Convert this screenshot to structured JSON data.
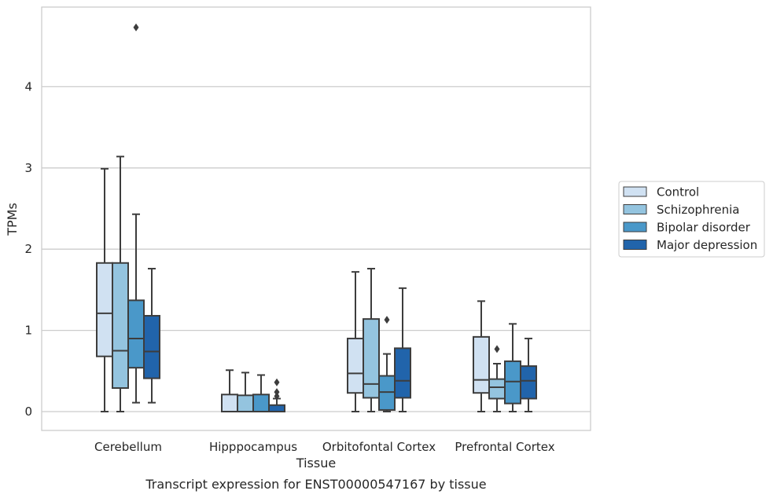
{
  "chart_data": {
    "type": "box",
    "title": "Transcript expression for ENST00000547167 by tissue",
    "xlabel": "Tissue",
    "ylabel": "TPMs",
    "ylim": [
      -0.22,
      4.98
    ],
    "yticks": [
      0,
      1,
      2,
      3,
      4
    ],
    "grid": "horizontal",
    "legend_position": "right",
    "categories": [
      "Cerebellum",
      "Hipppocampus",
      "Orbitofontal Cortex",
      "Prefrontal Cortex"
    ],
    "series": [
      {
        "name": "Control",
        "color": "#d0e1f2",
        "boxes": [
          {
            "whislo": 0.0,
            "q1": 0.68,
            "median": 1.21,
            "q3": 1.83,
            "whishi": 2.99,
            "fliers": []
          },
          {
            "whislo": 0.0,
            "q1": 0.0,
            "median": 0.0,
            "q3": 0.21,
            "whishi": 0.51,
            "fliers": []
          },
          {
            "whislo": 0.0,
            "q1": 0.23,
            "median": 0.47,
            "q3": 0.9,
            "whishi": 1.72,
            "fliers": []
          },
          {
            "whislo": 0.0,
            "q1": 0.23,
            "median": 0.39,
            "q3": 0.92,
            "whishi": 1.36,
            "fliers": []
          }
        ]
      },
      {
        "name": "Schizophrenia",
        "color": "#94c4df",
        "boxes": [
          {
            "whislo": 0.0,
            "q1": 0.29,
            "median": 0.75,
            "q3": 1.83,
            "whishi": 3.14,
            "fliers": []
          },
          {
            "whislo": 0.0,
            "q1": 0.0,
            "median": 0.0,
            "q3": 0.2,
            "whishi": 0.48,
            "fliers": []
          },
          {
            "whislo": 0.0,
            "q1": 0.17,
            "median": 0.34,
            "q3": 1.14,
            "whishi": 1.76,
            "fliers": []
          },
          {
            "whislo": 0.0,
            "q1": 0.16,
            "median": 0.3,
            "q3": 0.4,
            "whishi": 0.59,
            "fliers": [
              0.77
            ]
          }
        ]
      },
      {
        "name": "Bipolar disorder",
        "color": "#4a98c9",
        "boxes": [
          {
            "whislo": 0.11,
            "q1": 0.54,
            "median": 0.9,
            "q3": 1.37,
            "whishi": 2.43,
            "fliers": [
              4.73
            ]
          },
          {
            "whislo": 0.0,
            "q1": 0.0,
            "median": 0.0,
            "q3": 0.21,
            "whishi": 0.45,
            "fliers": []
          },
          {
            "whislo": 0.0,
            "q1": 0.02,
            "median": 0.24,
            "q3": 0.44,
            "whishi": 0.71,
            "fliers": [
              1.13
            ]
          },
          {
            "whislo": 0.0,
            "q1": 0.1,
            "median": 0.37,
            "q3": 0.62,
            "whishi": 1.08,
            "fliers": []
          }
        ]
      },
      {
        "name": "Major depression",
        "color": "#2164ab",
        "boxes": [
          {
            "whislo": 0.11,
            "q1": 0.41,
            "median": 0.74,
            "q3": 1.18,
            "whishi": 1.76,
            "fliers": []
          },
          {
            "whislo": 0.0,
            "q1": 0.0,
            "median": 0.0,
            "q3": 0.08,
            "whishi": 0.16,
            "fliers": [
              0.19,
              0.24,
              0.36
            ]
          },
          {
            "whislo": 0.0,
            "q1": 0.17,
            "median": 0.38,
            "q3": 0.78,
            "whishi": 1.52,
            "fliers": []
          },
          {
            "whislo": 0.0,
            "q1": 0.16,
            "median": 0.38,
            "q3": 0.56,
            "whishi": 0.9,
            "fliers": []
          }
        ]
      }
    ]
  }
}
